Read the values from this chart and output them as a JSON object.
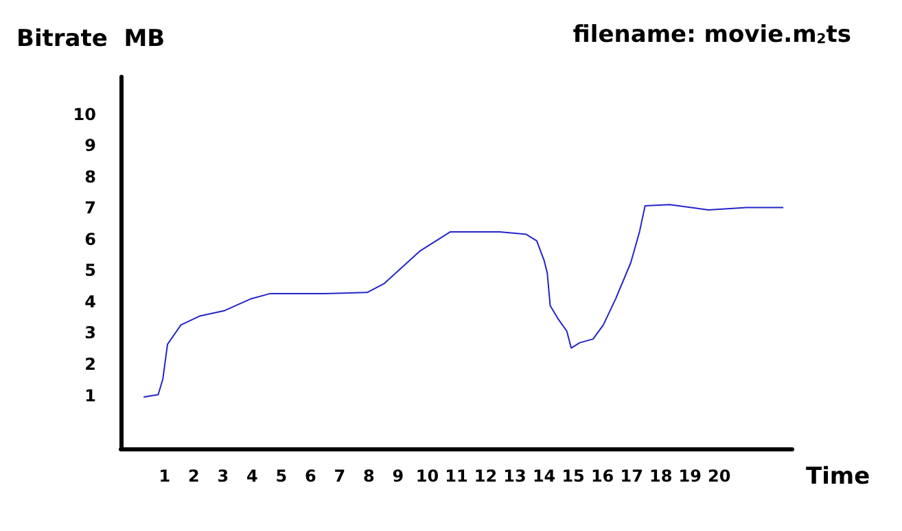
{
  "chart_data": {
    "type": "line",
    "title": "filename: movie.m$_{2}$ts",
    "ylabel": "Bitrate  MB",
    "xlabel": "Time",
    "series": [
      {
        "color": "#2424c8",
        "x": [
          0.28,
          0.78,
          0.94,
          1.1,
          1.56,
          2.22,
          3.06,
          3.94,
          4.6,
          6.47,
          7.94,
          8.53,
          9.74,
          10.79,
          11.37,
          12.48,
          13.39,
          13.75,
          14,
          14.11,
          14.21,
          14.47,
          14.78,
          14.93,
          15.22,
          15.68,
          16.03,
          16.45,
          16.97,
          17.27,
          17.46,
          18.3,
          19.63,
          20.94,
          22.2
        ],
        "values": [
          0.95,
          1.03,
          1.53,
          2.64,
          3.26,
          3.55,
          3.72,
          4.09,
          4.26,
          4.26,
          4.3,
          4.59,
          5.62,
          6.24,
          6.24,
          6.24,
          6.16,
          5.95,
          5.33,
          4.92,
          3.88,
          3.47,
          3.06,
          2.52,
          2.69,
          2.81,
          3.26,
          4.09,
          5.25,
          6.24,
          7.07,
          7.11,
          6.94,
          7.02,
          7.02
        ]
      }
    ],
    "xlim": [
      -0.5,
      22.5
    ],
    "xticks": [
      1,
      2,
      3,
      4,
      5,
      6,
      7,
      8,
      9,
      10,
      11,
      12,
      13,
      14,
      15,
      16,
      17,
      18,
      19,
      20
    ],
    "ylim": [
      -0.7,
      11.2
    ],
    "yticks": [
      1,
      2,
      3,
      4,
      5,
      6,
      7,
      8,
      9,
      10
    ],
    "grid": false,
    "marker": "none",
    "line_style": "solid"
  }
}
